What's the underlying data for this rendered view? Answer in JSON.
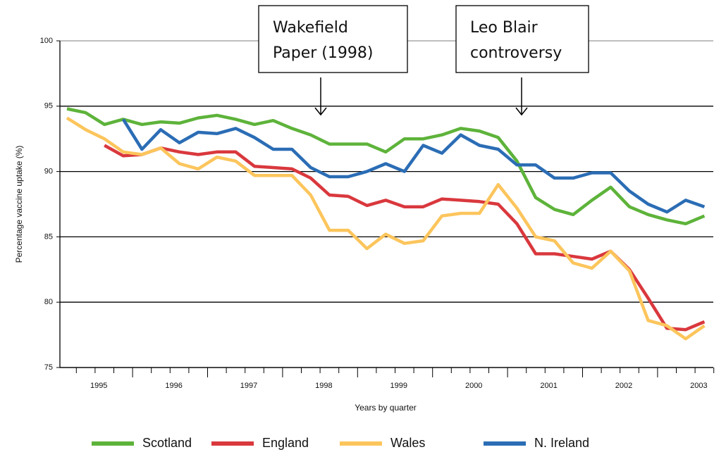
{
  "chart_data": {
    "type": "line",
    "x_label": "Years by quarter",
    "y_label": "Percentage vaccine uptake (%)",
    "categories": [
      null,
      null,
      "1995",
      null,
      null,
      null,
      "1996",
      null,
      null,
      null,
      "1997",
      null,
      null,
      null,
      "1998",
      null,
      null,
      null,
      "1999",
      null,
      null,
      null,
      "2000",
      null,
      null,
      null,
      "2001",
      null,
      null,
      null,
      "2002",
      null,
      null,
      null,
      "2003"
    ],
    "ylim": [
      75,
      100
    ],
    "yticks": [
      75,
      80,
      85,
      90,
      95,
      100
    ],
    "grid": true,
    "legend": "bottom",
    "series": [
      {
        "name": "Scotland",
        "color": "#5db33a",
        "values": [
          94.8,
          94.5,
          93.6,
          94.0,
          93.6,
          93.8,
          93.7,
          94.1,
          94.3,
          94.0,
          93.6,
          93.9,
          93.3,
          92.8,
          92.1,
          92.1,
          92.1,
          91.5,
          92.5,
          92.5,
          92.8,
          93.3,
          93.1,
          92.6,
          90.8,
          88.0,
          87.1,
          86.7,
          87.8,
          88.8,
          87.3,
          86.7,
          86.3,
          86.0,
          86.6
        ]
      },
      {
        "name": "England",
        "color": "#d9383d",
        "values": [
          null,
          null,
          92.0,
          91.2,
          91.3,
          91.8,
          91.5,
          91.3,
          91.5,
          91.5,
          90.4,
          90.3,
          90.2,
          89.5,
          88.2,
          88.1,
          87.4,
          87.8,
          87.3,
          87.3,
          87.9,
          87.8,
          87.7,
          87.5,
          86.0,
          83.7,
          83.7,
          83.5,
          83.3,
          83.9,
          82.5,
          80.3,
          78.0,
          77.9,
          78.5
        ]
      },
      {
        "name": "Wales",
        "color": "#fcc55c",
        "values": [
          94.1,
          93.2,
          92.5,
          91.5,
          91.3,
          91.8,
          90.6,
          90.2,
          91.1,
          90.8,
          89.7,
          89.7,
          89.7,
          88.2,
          85.5,
          85.5,
          84.1,
          85.2,
          84.5,
          84.7,
          86.6,
          86.8,
          86.8,
          89.0,
          87.2,
          85.0,
          84.7,
          83.0,
          82.6,
          83.9,
          82.4,
          78.6,
          78.2,
          77.2,
          78.2
        ]
      },
      {
        "name": "N. Ireland",
        "color": "#2b6db5",
        "values": [
          null,
          null,
          null,
          94.0,
          91.7,
          93.2,
          92.2,
          93.0,
          92.9,
          93.3,
          92.6,
          91.7,
          91.7,
          90.3,
          89.6,
          89.6,
          90.0,
          90.6,
          90.0,
          92.0,
          91.4,
          92.8,
          92.0,
          91.7,
          90.5,
          90.5,
          89.5,
          89.5,
          89.9,
          89.9,
          88.5,
          87.5,
          86.9,
          87.8,
          87.3
        ]
      }
    ],
    "annotations": [
      {
        "lines": [
          "Wakefield",
          "Paper (1998)"
        ]
      },
      {
        "lines": [
          "Leo Blair",
          "controversy"
        ]
      }
    ]
  }
}
